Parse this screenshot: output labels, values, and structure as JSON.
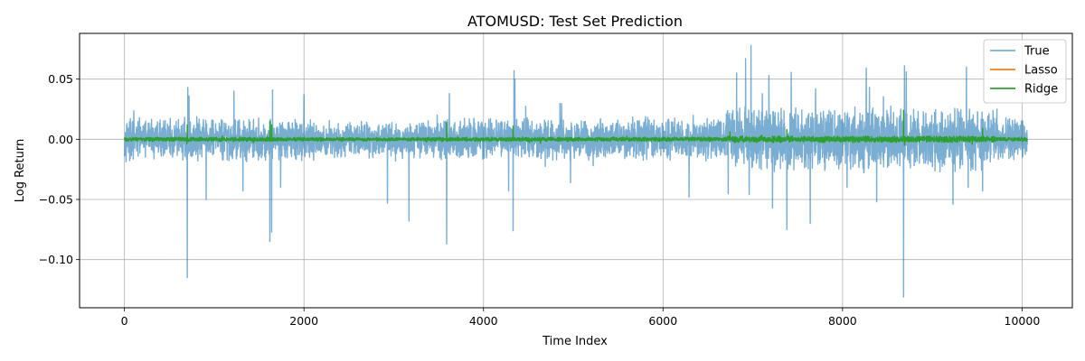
{
  "chart_data": {
    "type": "line",
    "title": "ATOMUSD: Test Set Prediction",
    "xlabel": "Time Index",
    "ylabel": "Log Return",
    "xlim": [
      -500,
      10560
    ],
    "ylim": [
      -0.14,
      0.088
    ],
    "xticks": [
      0,
      2000,
      4000,
      6000,
      8000,
      10000
    ],
    "xtick_labels": [
      "0",
      "2000",
      "4000",
      "6000",
      "8000",
      "10000"
    ],
    "yticks": [
      -0.1,
      -0.05,
      0.0,
      0.05
    ],
    "ytick_labels": [
      "−0.10",
      "−0.05",
      "0.00",
      "0.05"
    ],
    "grid": true,
    "legend_position": "top-right",
    "n_points": 10060,
    "series": [
      {
        "name": "True",
        "color": "#1f77b4",
        "alpha": 0.6,
        "baseline_amplitude": 0.012,
        "spikes": [
          {
            "x": 700,
            "y": -0.115
          },
          {
            "x": 705,
            "y": 0.043
          },
          {
            "x": 720,
            "y": 0.036
          },
          {
            "x": 910,
            "y": -0.05
          },
          {
            "x": 1220,
            "y": 0.04
          },
          {
            "x": 1320,
            "y": -0.043
          },
          {
            "x": 1620,
            "y": -0.085
          },
          {
            "x": 1640,
            "y": -0.077
          },
          {
            "x": 1650,
            "y": 0.041
          },
          {
            "x": 1740,
            "y": -0.04
          },
          {
            "x": 2000,
            "y": 0.037
          },
          {
            "x": 2930,
            "y": -0.053
          },
          {
            "x": 3170,
            "y": -0.068
          },
          {
            "x": 3590,
            "y": -0.087
          },
          {
            "x": 3620,
            "y": 0.038
          },
          {
            "x": 4330,
            "y": -0.076
          },
          {
            "x": 4340,
            "y": 0.057
          },
          {
            "x": 4350,
            "y": 0.05
          },
          {
            "x": 4280,
            "y": -0.043
          },
          {
            "x": 4970,
            "y": -0.036
          },
          {
            "x": 6290,
            "y": -0.048
          },
          {
            "x": 6820,
            "y": 0.055
          },
          {
            "x": 6920,
            "y": 0.067
          },
          {
            "x": 6980,
            "y": 0.078
          },
          {
            "x": 6960,
            "y": -0.046
          },
          {
            "x": 7180,
            "y": 0.053
          },
          {
            "x": 7220,
            "y": -0.057
          },
          {
            "x": 7380,
            "y": -0.075
          },
          {
            "x": 7640,
            "y": -0.07
          },
          {
            "x": 7700,
            "y": 0.042
          },
          {
            "x": 8050,
            "y": -0.04
          },
          {
            "x": 8300,
            "y": 0.043
          },
          {
            "x": 8380,
            "y": -0.052
          },
          {
            "x": 8680,
            "y": -0.131
          },
          {
            "x": 8690,
            "y": 0.061
          },
          {
            "x": 8710,
            "y": 0.056
          },
          {
            "x": 9230,
            "y": -0.054
          },
          {
            "x": 9380,
            "y": 0.06
          },
          {
            "x": 9400,
            "y": -0.04
          },
          {
            "x": 9560,
            "y": -0.043
          },
          {
            "x": 9720,
            "y": 0.025
          }
        ]
      },
      {
        "name": "Lasso",
        "color": "#ff7f0e",
        "alpha": 1.0,
        "baseline_amplitude": 0.0003,
        "spikes": []
      },
      {
        "name": "Ridge",
        "color": "#2ca02c",
        "alpha": 1.0,
        "baseline_amplitude": 0.0012,
        "spikes": [
          {
            "x": 700,
            "y": 0.012
          },
          {
            "x": 1620,
            "y": 0.015
          },
          {
            "x": 1640,
            "y": 0.012
          },
          {
            "x": 3590,
            "y": 0.014
          },
          {
            "x": 4330,
            "y": 0.011
          },
          {
            "x": 7380,
            "y": 0.008
          },
          {
            "x": 8680,
            "y": 0.024
          },
          {
            "x": 8690,
            "y": -0.005
          },
          {
            "x": 9560,
            "y": 0.009
          }
        ]
      }
    ]
  }
}
